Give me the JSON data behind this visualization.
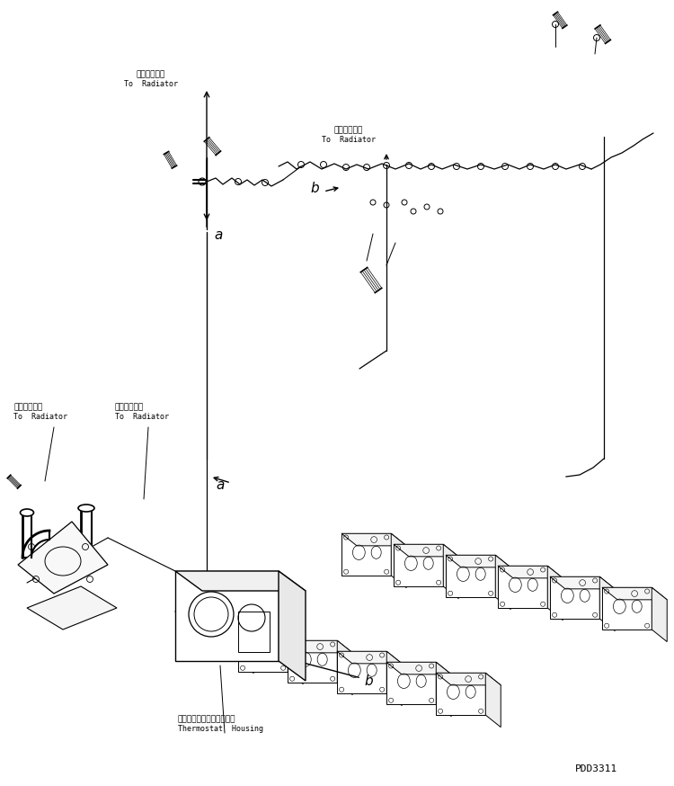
{
  "bg_color": "#ffffff",
  "line_color": "#000000",
  "fig_width": 7.5,
  "fig_height": 8.74,
  "dpi": 100,
  "labels": {
    "label_a1_jp": "ラジェータへ",
    "label_a1_en": "To  Radiator",
    "label_b1_jp": "ラジェータへ",
    "label_b1_en": "To  Radiator",
    "label_left1_jp": "ラジェータへ",
    "label_left1_en": "To  Radiator",
    "label_left2_jp": "ラジェータへ",
    "label_left2_en": "To  Radiator",
    "label_thermo_jp": "サーモスタットハウジング",
    "label_thermo_en": "Thermostat  Housing",
    "label_a": "a",
    "label_b": "b",
    "code": "PDD3311"
  },
  "font_sizes": {
    "label_jp": 6.5,
    "label_en": 6.0,
    "marker": 11,
    "code": 8
  }
}
